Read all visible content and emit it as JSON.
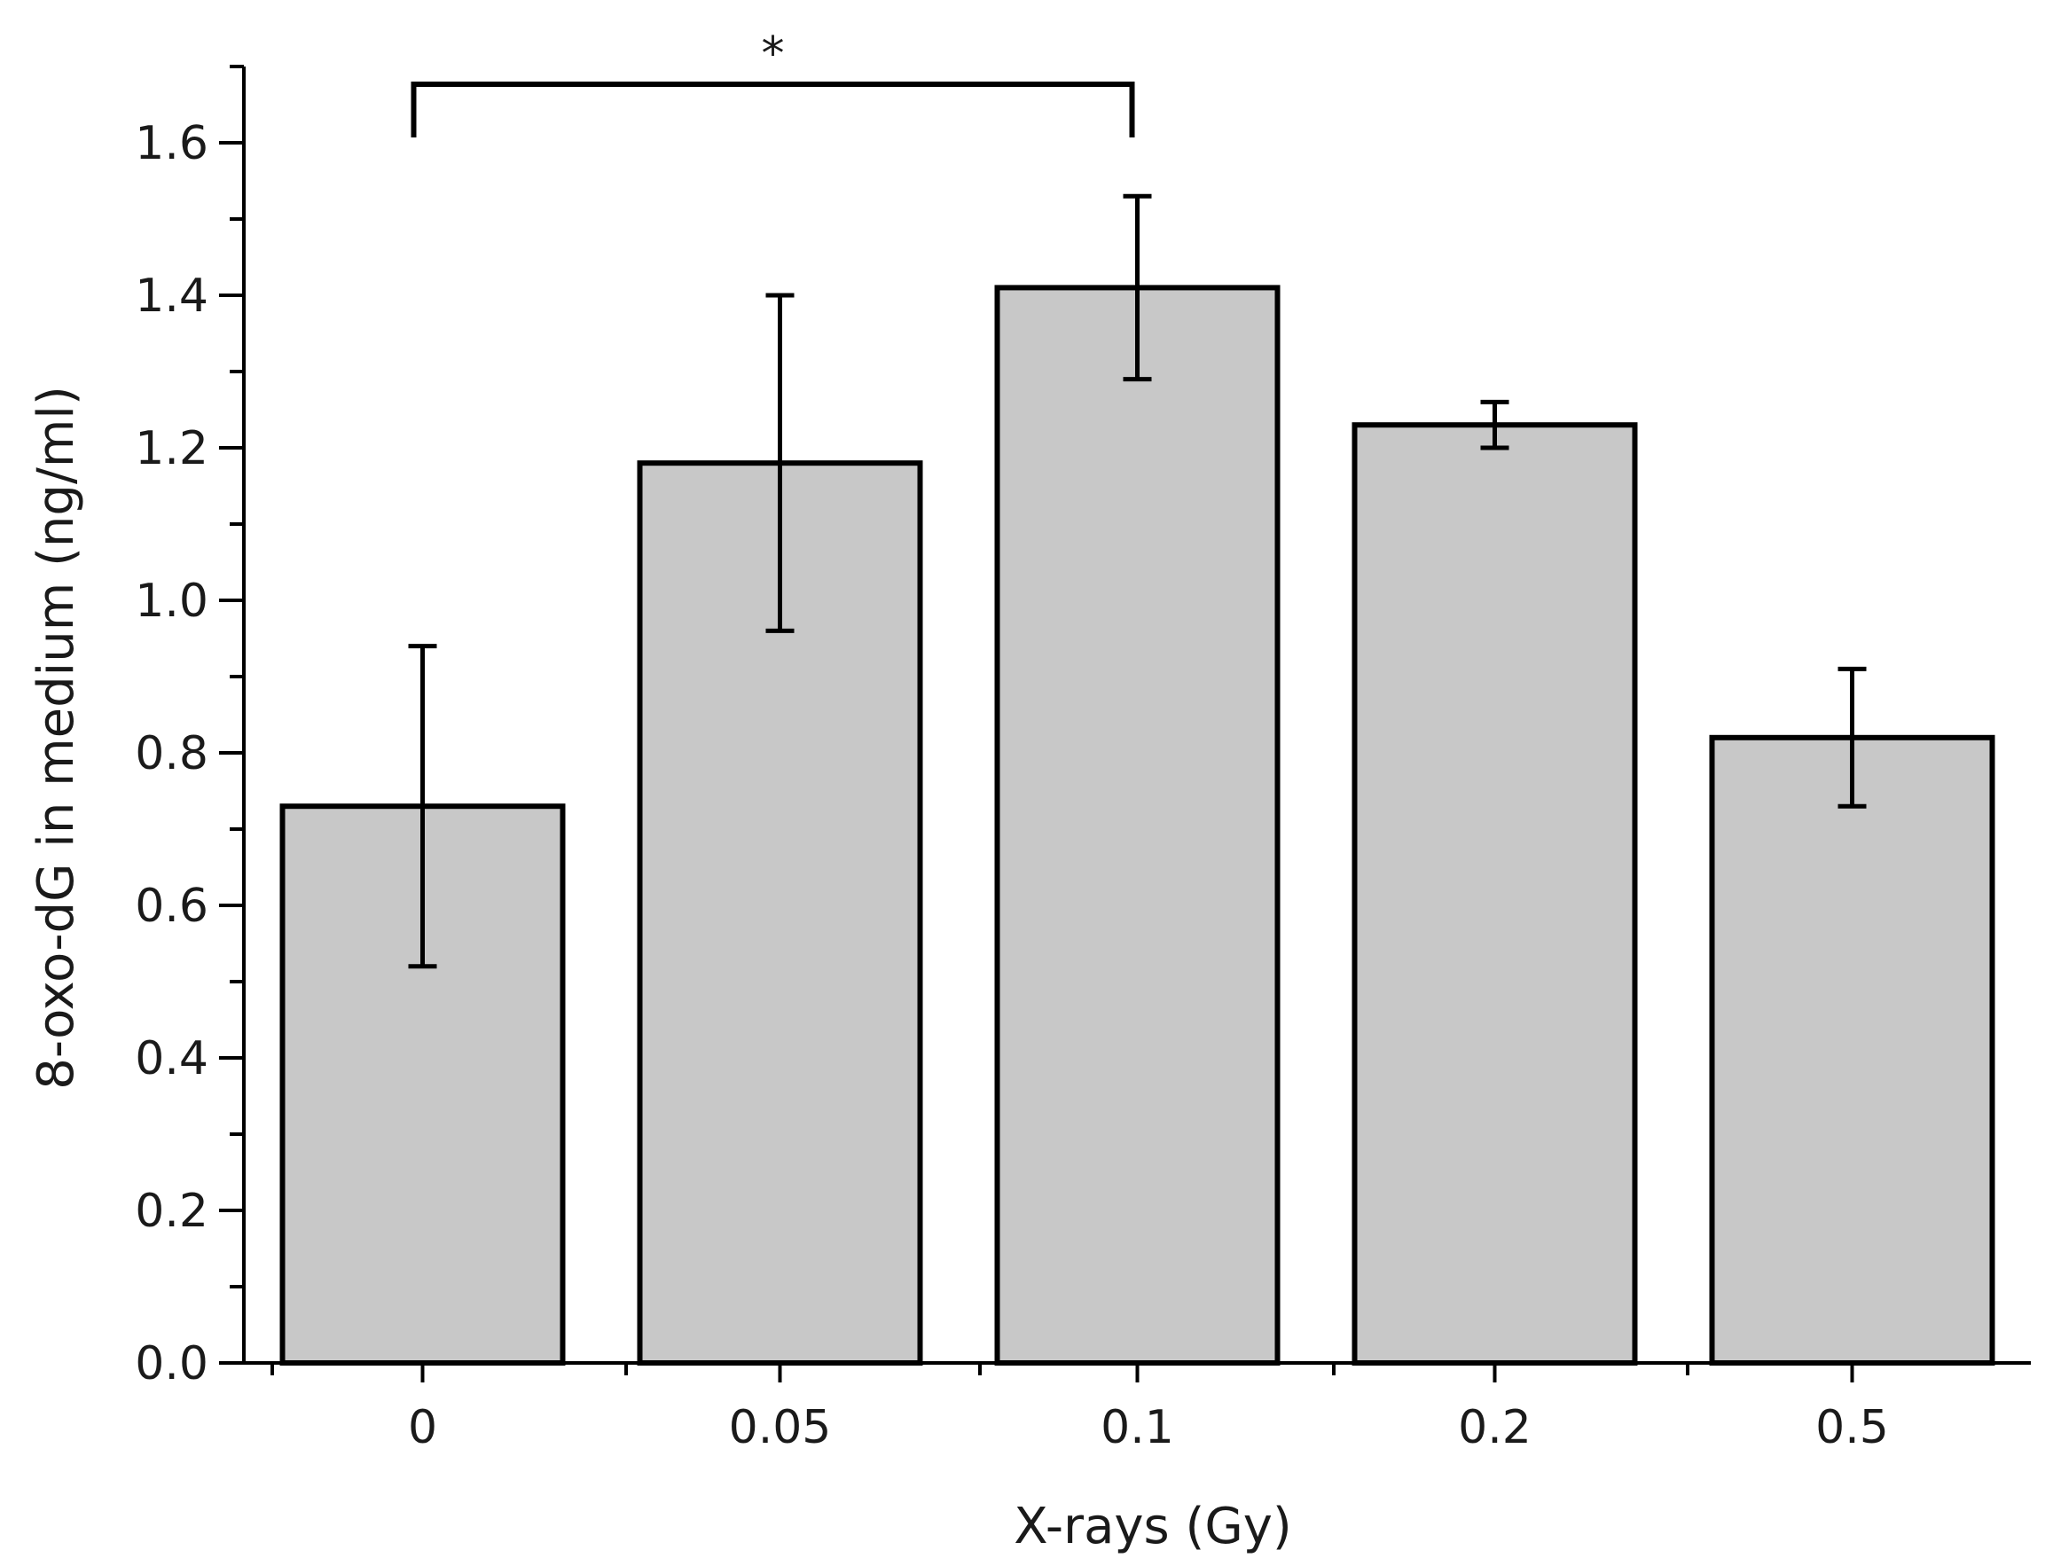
{
  "chart_data": {
    "type": "bar",
    "categories": [
      "0",
      "0.05",
      "0.1",
      "0.2",
      "0.5"
    ],
    "series": [
      {
        "values": [
          0.73,
          1.18,
          1.41,
          1.23,
          0.82
        ],
        "error": [
          0.21,
          0.22,
          0.12,
          0.03,
          0.09
        ]
      }
    ],
    "xlabel": "X-rays (Gy)",
    "ylabel": "8-oxo-dG in medium (ng/ml)",
    "ylim": [
      0,
      1.7
    ],
    "yticks": [
      "0.0",
      "0.2",
      "0.4",
      "0.6",
      "0.8",
      "1.0",
      "1.2",
      "1.4",
      "1.6"
    ],
    "ytick_values": [
      0,
      0.2,
      0.4,
      0.6,
      0.8,
      1.0,
      1.2,
      1.4,
      1.6
    ],
    "y_minor_step": 0.1,
    "bar_color": "#c8c8c8",
    "grid": false,
    "annotations": [
      {
        "type": "significance",
        "from": "0",
        "to": "0.1",
        "label": "*"
      }
    ]
  }
}
